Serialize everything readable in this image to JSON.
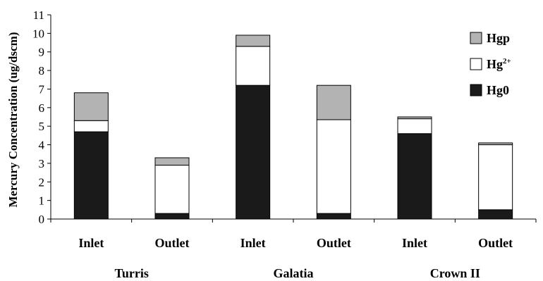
{
  "chart_data": {
    "type": "bar",
    "stacked": true,
    "ylabel": "Mercury Concentration (ug/dscm)",
    "ylim": [
      0,
      11
    ],
    "yticks": [
      0,
      1,
      2,
      3,
      4,
      5,
      6,
      7,
      8,
      9,
      10,
      11
    ],
    "categories": [
      "Inlet",
      "Outlet",
      "Inlet",
      "Outlet",
      "Inlet",
      "Outlet"
    ],
    "groups": [
      {
        "label": "Turris",
        "categories": [
          0,
          1
        ]
      },
      {
        "label": "Galatia",
        "categories": [
          2,
          3
        ]
      },
      {
        "label": "Crown II",
        "categories": [
          4,
          5
        ]
      }
    ],
    "series": [
      {
        "name": "Hg0",
        "color": "#1a1a1a",
        "values": [
          4.7,
          0.3,
          7.2,
          0.3,
          4.6,
          0.5
        ]
      },
      {
        "name": "Hg2+",
        "color": "#ffffff",
        "values": [
          0.6,
          2.6,
          2.1,
          5.05,
          0.8,
          3.5
        ]
      },
      {
        "name": "Hgp",
        "color": "#b3b3b3",
        "values": [
          1.5,
          0.4,
          0.6,
          1.85,
          0.1,
          0.1
        ]
      }
    ],
    "legend": {
      "position": "top-right",
      "order": [
        "Hgp",
        "Hg2+",
        "Hg0"
      ],
      "labels": {
        "Hgp": "Hgp",
        "Hg2+": "Hg",
        "Hg0": "Hg0"
      },
      "superscripts": {
        "Hg2+": "2+"
      }
    },
    "grid": false
  }
}
